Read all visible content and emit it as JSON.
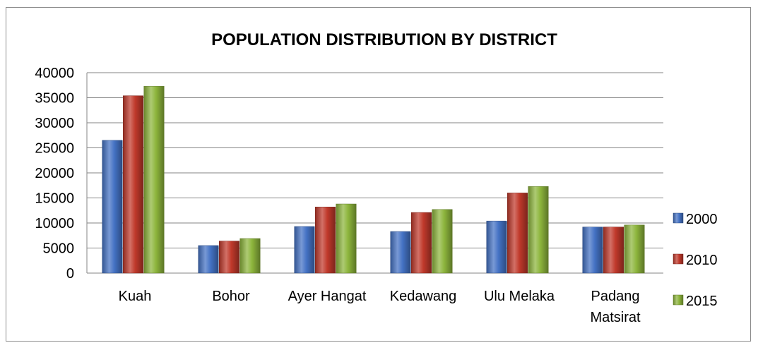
{
  "chart_data": {
    "type": "bar",
    "title": "POPULATION DISTRIBUTION BY DISTRICT",
    "xlabel": "",
    "ylabel": "",
    "categories": [
      "Kuah",
      "Bohor",
      "Ayer Hangat",
      "Kedawang",
      "Ulu Melaka",
      "Padang Matsirat"
    ],
    "category_lines": [
      [
        "Kuah"
      ],
      [
        "Bohor"
      ],
      [
        "Ayer Hangat"
      ],
      [
        "Kedawang"
      ],
      [
        "Ulu Melaka"
      ],
      [
        "Padang",
        "Matsirat"
      ]
    ],
    "series": [
      {
        "name": "2000",
        "values": [
          26500,
          5500,
          9300,
          8300,
          10400,
          9200
        ],
        "color": "#4472c4"
      },
      {
        "name": "2010",
        "values": [
          35400,
          6400,
          13200,
          12100,
          16000,
          9200
        ],
        "color": "#c0392b"
      },
      {
        "name": "2015",
        "values": [
          37300,
          6900,
          13800,
          12700,
          17300,
          9600
        ],
        "color": "#8db53c"
      }
    ],
    "ylim": [
      0,
      40000
    ],
    "yticks": [
      0,
      5000,
      10000,
      15000,
      20000,
      25000,
      30000,
      35000,
      40000
    ],
    "grid": true,
    "legend_position": "right"
  }
}
